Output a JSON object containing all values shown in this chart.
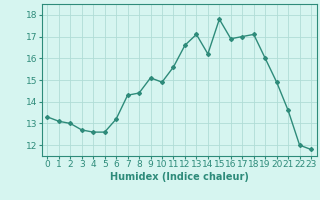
{
  "xlabel": "Humidex (Indice chaleur)",
  "ylabel": "",
  "x": [
    0,
    1,
    2,
    3,
    4,
    5,
    6,
    7,
    8,
    9,
    10,
    11,
    12,
    13,
    14,
    15,
    16,
    17,
    18,
    19,
    20,
    21,
    22,
    23
  ],
  "y": [
    13.3,
    13.1,
    13.0,
    12.7,
    12.6,
    12.6,
    13.2,
    14.3,
    14.4,
    15.1,
    14.9,
    15.6,
    16.6,
    17.1,
    16.2,
    17.8,
    16.9,
    17.0,
    17.1,
    16.0,
    14.9,
    13.6,
    12.0,
    11.8
  ],
  "line_color": "#2e8b7a",
  "marker": "D",
  "marker_size": 2.0,
  "line_width": 1.0,
  "bg_color": "#d6f5f0",
  "grid_color": "#b0ddd6",
  "ylim": [
    11.5,
    18.5
  ],
  "yticks": [
    12,
    13,
    14,
    15,
    16,
    17,
    18
  ],
  "xlim": [
    -0.5,
    23.5
  ],
  "label_fontsize": 7,
  "tick_fontsize": 6.5
}
